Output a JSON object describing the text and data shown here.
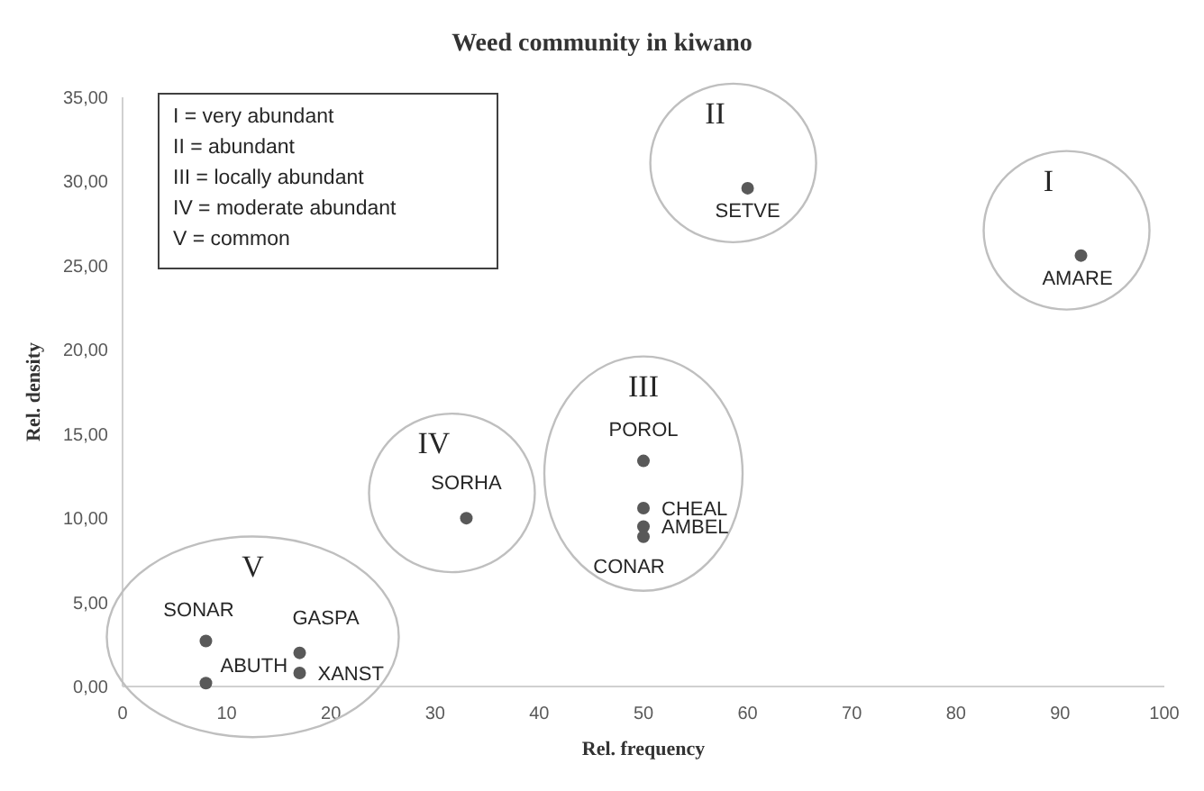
{
  "chart_data": {
    "type": "scatter",
    "title": "Weed community in kiwano",
    "xlabel": "Rel. frequency",
    "ylabel": "Rel. density",
    "xlim": [
      0,
      100
    ],
    "xticks": [
      0,
      10,
      20,
      30,
      40,
      50,
      60,
      70,
      80,
      90,
      100
    ],
    "ylim": [
      0,
      35
    ],
    "yticks": [
      {
        "value": 0,
        "label": "0,00"
      },
      {
        "value": 5,
        "label": "5,00"
      },
      {
        "value": 10,
        "label": "10,00"
      },
      {
        "value": 15,
        "label": "15,00"
      },
      {
        "value": 20,
        "label": "20,00"
      },
      {
        "value": 25,
        "label": "25,00"
      },
      {
        "value": 30,
        "label": "30,00"
      },
      {
        "value": 35,
        "label": "35,00"
      }
    ],
    "grid": false,
    "marker": "circle",
    "series": [
      {
        "name": "I",
        "color": "#595959",
        "x": [
          92
        ],
        "values": [
          25.6
        ]
      },
      {
        "name": "II",
        "color": "#595959",
        "x": [
          60
        ],
        "values": [
          29.6
        ]
      },
      {
        "name": "III",
        "color": "#595959",
        "x": [
          50,
          50,
          50,
          50
        ],
        "values": [
          13.4,
          10.6,
          9.5,
          8.9
        ]
      },
      {
        "name": "IV",
        "color": "#595959",
        "x": [
          33
        ],
        "values": [
          10
        ]
      },
      {
        "name": "V",
        "color": "#595959",
        "x": [
          8,
          8,
          17,
          17
        ],
        "values": [
          2.7,
          0.2,
          2,
          0.8
        ]
      }
    ],
    "annotations": [
      "I = very abundant",
      "II = abundant",
      "III = locally abundant",
      "IV = moderate abundant",
      "V = common",
      {
        "text": "AMARE",
        "x": 92,
        "y": 25.6
      },
      {
        "text": "SETVE",
        "x": 60,
        "y": 29.6
      },
      {
        "text": "POROL",
        "x": 50,
        "y": 13.4
      },
      {
        "text": "CHEAL",
        "x": 50,
        "y": 10.6
      },
      {
        "text": "AMBEL",
        "x": 50,
        "y": 9.5
      },
      {
        "text": "CONAR",
        "x": 50,
        "y": 8.9
      },
      {
        "text": "SORHA",
        "x": 33,
        "y": 10
      },
      {
        "text": "SONAR",
        "x": 8,
        "y": 2.7
      },
      {
        "text": "ABUTH",
        "x": 8,
        "y": 0.2
      },
      {
        "text": "GASPA",
        "x": 17,
        "y": 2
      },
      {
        "text": "XANST",
        "x": 17,
        "y": 0.8
      }
    ]
  }
}
